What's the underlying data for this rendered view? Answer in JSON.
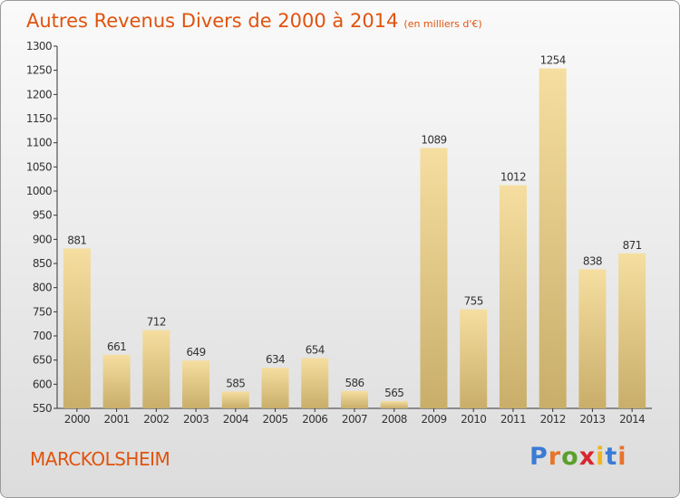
{
  "header": {
    "title": "Autres Revenus Divers de 2000 à 2014",
    "subtitle": "(en milliers d'€)"
  },
  "footer": {
    "town": "MARCKOLSHEIM",
    "logo": "Proxiti"
  },
  "colors": {
    "accent": "#e0530e",
    "bar_light": "#f5dea0",
    "bar_dark": "#c9ae6a"
  },
  "chart_data": {
    "type": "bar",
    "categories": [
      "2000",
      "2001",
      "2002",
      "2003",
      "2004",
      "2005",
      "2006",
      "2007",
      "2008",
      "2009",
      "2010",
      "2011",
      "2012",
      "2013",
      "2014"
    ],
    "values": [
      881,
      661,
      712,
      649,
      585,
      634,
      654,
      586,
      565,
      1089,
      755,
      1012,
      1254,
      838,
      871
    ],
    "title": "Autres Revenus Divers de 2000 à 2014",
    "subtitle": "(en milliers d'€)",
    "xlabel": "",
    "ylabel": "",
    "ylim": [
      550,
      1300
    ],
    "yticks": [
      550,
      600,
      650,
      700,
      750,
      800,
      850,
      900,
      950,
      1000,
      1050,
      1100,
      1150,
      1200,
      1250,
      1300
    ],
    "grid": false,
    "data_labels": true
  }
}
